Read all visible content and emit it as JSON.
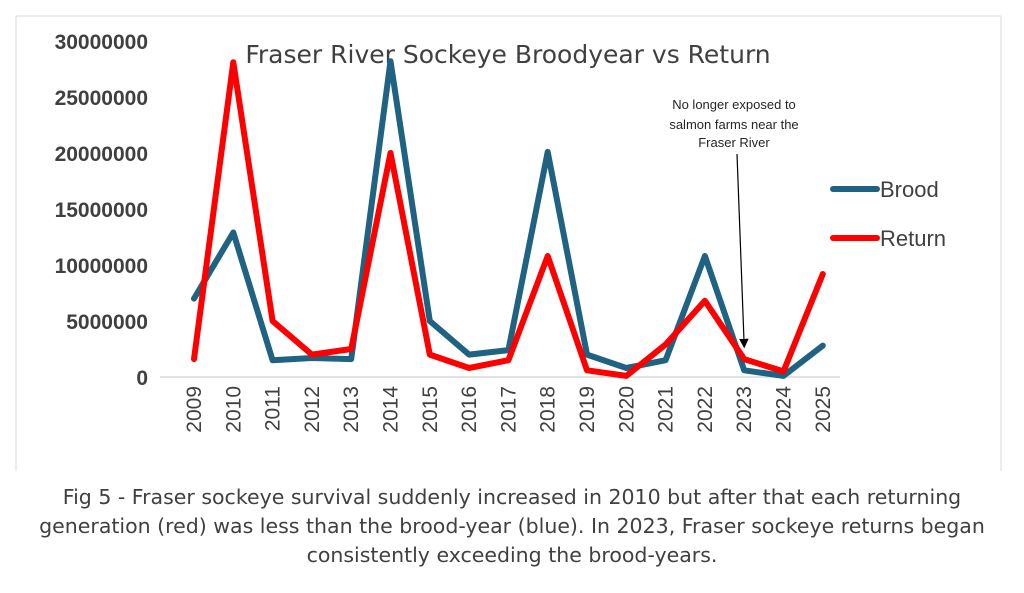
{
  "chart_data": {
    "type": "line",
    "title": "Fraser River Sockeye Broodyear vs Return",
    "categories": [
      "2009",
      "2010",
      "2011",
      "2012",
      "2013",
      "2014",
      "2015",
      "2016",
      "2017",
      "2018",
      "2019",
      "2020",
      "2021",
      "2022",
      "2023",
      "2024",
      "2025"
    ],
    "yticks": [
      "0",
      "5000000",
      "10000000",
      "15000000",
      "20000000",
      "25000000",
      "30000000"
    ],
    "ylim": [
      0,
      30000000
    ],
    "grid": false,
    "legend_position": "right",
    "series": [
      {
        "name": "Brood",
        "color": "#1f6282",
        "values": [
          7000000,
          12900000,
          1500000,
          1700000,
          1600000,
          28200000,
          5000000,
          2000000,
          2400000,
          20100000,
          2000000,
          800000,
          1500000,
          10800000,
          600000,
          100000,
          2800000
        ]
      },
      {
        "name": "Return",
        "color": "#ff0000",
        "values": [
          1600000,
          28100000,
          5000000,
          2000000,
          2500000,
          20000000,
          2000000,
          800000,
          1500000,
          10800000,
          600000,
          100000,
          2900000,
          6800000,
          1600000,
          500000,
          9200000
        ]
      }
    ],
    "annotation": {
      "lines": [
        "No longer exposed to",
        "salmon farms near the",
        "Fraser River"
      ],
      "target_category": "2023"
    }
  },
  "caption": {
    "lines": [
      "Fig 5 - Fraser sockeye survival suddenly increased in 2010 but after that each returning",
      "generation (red) was less than the brood-year (blue). In 2023, Fraser sockeye returns began",
      "consistently exceeding the brood-years."
    ]
  }
}
